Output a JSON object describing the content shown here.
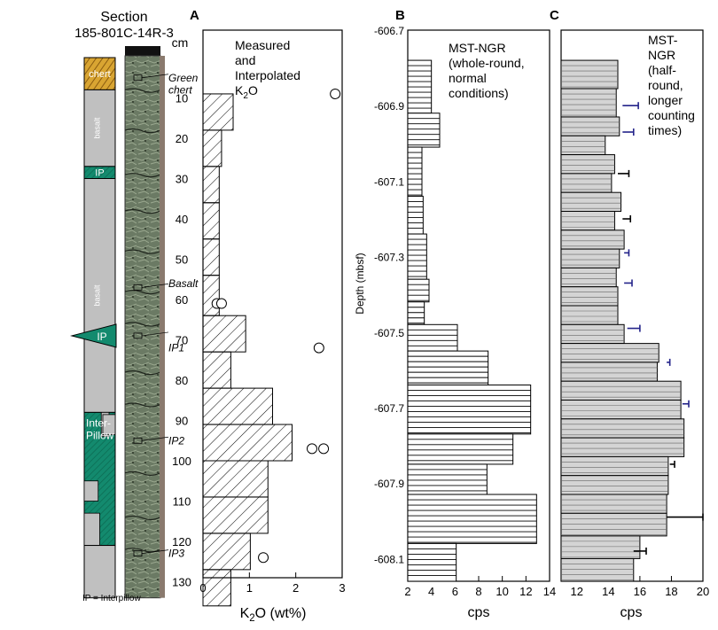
{
  "colors": {
    "chert": "#d9a532",
    "chert_hatch": "#8a5c10",
    "basalt": "#c0c0c0",
    "interpillow": "#138a6e",
    "core_photo": "#5e6e5a",
    "errorbar_blue": "#23238a",
    "bar_grey": "#d4d4d4"
  },
  "lith": {
    "section_title": "Section",
    "section_id": "185-801C-14R-3",
    "cm_label": "cm",
    "legend_note": "IP = Interpillow",
    "units": [
      {
        "kind": "chert",
        "label": "chert",
        "top_cm": 0,
        "bottom_cm": 8
      },
      {
        "kind": "basalt",
        "label": "basalt",
        "top_cm": 8,
        "bottom_cm": 27
      },
      {
        "kind": "ip",
        "label": "IP",
        "top_cm": 27,
        "bottom_cm": 30
      },
      {
        "kind": "basalt",
        "label": "basalt",
        "top_cm": 30,
        "bottom_cm": 88
      },
      {
        "kind": "ip",
        "label": "Inter-\nPillow",
        "top_cm": 88,
        "bottom_cm": 121
      },
      {
        "kind": "basalt",
        "label": "",
        "top_cm": 121,
        "bottom_cm": 134
      }
    ],
    "ip_marker_label": "IP",
    "ip_marker_cm": 69,
    "depth_ticks": [
      10,
      20,
      30,
      40,
      50,
      60,
      70,
      80,
      90,
      100,
      110,
      120,
      130
    ],
    "annotations": [
      {
        "text": "Green",
        "cm": 5
      },
      {
        "text": "chert",
        "cm": 8
      },
      {
        "text": "Basalt",
        "cm": 56
      },
      {
        "text": "IP1",
        "cm": 72
      },
      {
        "text": "IP2",
        "cm": 95
      },
      {
        "text": "IP3",
        "cm": 123
      }
    ]
  },
  "chart_data": [
    {
      "panel": "A",
      "type": "bar",
      "orientation": "horizontal",
      "title": "Measured\nand\nInterpolated\nK2O",
      "xlabel": "K2O (wt%)",
      "xlim": [
        0,
        3
      ],
      "xticks": [
        0,
        1,
        2,
        3
      ],
      "ylim_cm": [
        0,
        137
      ],
      "bars": [
        {
          "top": 9,
          "bottom": 18,
          "value": 0.65
        },
        {
          "top": 18,
          "bottom": 27,
          "value": 0.4
        },
        {
          "top": 27,
          "bottom": 36,
          "value": 0.35
        },
        {
          "top": 36,
          "bottom": 45,
          "value": 0.35
        },
        {
          "top": 45,
          "bottom": 54,
          "value": 0.35
        },
        {
          "top": 54,
          "bottom": 64,
          "value": 0.35
        },
        {
          "top": 64,
          "bottom": 73,
          "value": 0.92
        },
        {
          "top": 73,
          "bottom": 82,
          "value": 0.6
        },
        {
          "top": 82,
          "bottom": 91,
          "value": 1.5
        },
        {
          "top": 91,
          "bottom": 100,
          "value": 1.92
        },
        {
          "top": 100,
          "bottom": 109,
          "value": 1.4
        },
        {
          "top": 109,
          "bottom": 118,
          "value": 1.4
        },
        {
          "top": 118,
          "bottom": 127,
          "value": 1.02
        },
        {
          "top": 127,
          "bottom": 136,
          "value": 0.6
        }
      ],
      "points": [
        {
          "cm": 9,
          "value": 2.85
        },
        {
          "cm": 61,
          "value": 0.3
        },
        {
          "cm": 61,
          "value": 0.4
        },
        {
          "cm": 72,
          "value": 2.5
        },
        {
          "cm": 97,
          "value": 2.35
        },
        {
          "cm": 97,
          "value": 2.6
        },
        {
          "cm": 124,
          "value": 1.3
        }
      ]
    },
    {
      "panel": "B",
      "type": "bar",
      "orientation": "horizontal",
      "title": "MST-NGR\n(whole-round,\nnormal\nconditions)",
      "xlabel": "cps",
      "ylabel": "Depth (mbsf)",
      "xlim": [
        2,
        14
      ],
      "xticks": [
        2,
        4,
        6,
        8,
        10,
        12,
        14
      ],
      "ylim": [
        -606.7,
        -608.16
      ],
      "yticks": [
        -606.7,
        -606.9,
        -607.1,
        -607.3,
        -607.5,
        -607.7,
        -607.9,
        -608.1
      ],
      "bars": [
        {
          "top": -606.78,
          "bottom": -606.92,
          "value": 4.0
        },
        {
          "top": -606.92,
          "bottom": -607.01,
          "value": 4.7
        },
        {
          "top": -607.01,
          "bottom": -607.14,
          "value": 3.2
        },
        {
          "top": -607.14,
          "bottom": -607.24,
          "value": 3.3
        },
        {
          "top": -607.24,
          "bottom": -607.36,
          "value": 3.6
        },
        {
          "top": -607.36,
          "bottom": -607.42,
          "value": 3.8
        },
        {
          "top": -607.42,
          "bottom": -607.48,
          "value": 3.4
        },
        {
          "top": -607.48,
          "bottom": -607.55,
          "value": 6.2
        },
        {
          "top": -607.55,
          "bottom": -607.64,
          "value": 8.8
        },
        {
          "top": -607.64,
          "bottom": -607.77,
          "value": 12.4
        },
        {
          "top": -607.77,
          "bottom": -607.85,
          "value": 10.9
        },
        {
          "top": -607.85,
          "bottom": -607.93,
          "value": 8.7
        },
        {
          "top": -607.93,
          "bottom": -608.06,
          "value": 12.9
        },
        {
          "top": -608.06,
          "bottom": -608.16,
          "value": 6.1
        }
      ]
    },
    {
      "panel": "C",
      "type": "bar",
      "orientation": "horizontal",
      "title": "MST-\nNGR\n(half-\nround,\nlonger\ncounting\ntimes)",
      "xlabel": "cps",
      "xlim": [
        11,
        20
      ],
      "xticks": [
        12,
        14,
        16,
        18,
        20
      ],
      "ylim": [
        -606.7,
        -608.16
      ],
      "bars": [
        {
          "top": -606.78,
          "bottom": -606.855,
          "value": 14.6
        },
        {
          "top": -606.855,
          "bottom": -606.93,
          "value": 14.5
        },
        {
          "top": -606.93,
          "bottom": -606.98,
          "value": 14.7
        },
        {
          "top": -606.98,
          "bottom": -607.03,
          "value": 13.8
        },
        {
          "top": -607.03,
          "bottom": -607.08,
          "value": 14.4
        },
        {
          "top": -607.08,
          "bottom": -607.13,
          "value": 14.2
        },
        {
          "top": -607.13,
          "bottom": -607.18,
          "value": 14.8
        },
        {
          "top": -607.18,
          "bottom": -607.23,
          "value": 14.4
        },
        {
          "top": -607.23,
          "bottom": -607.28,
          "value": 15.0
        },
        {
          "top": -607.28,
          "bottom": -607.33,
          "value": 14.7
        },
        {
          "top": -607.33,
          "bottom": -607.38,
          "value": 14.5
        },
        {
          "top": -607.38,
          "bottom": -607.43,
          "value": 14.6
        },
        {
          "top": -607.43,
          "bottom": -607.48,
          "value": 14.6
        },
        {
          "top": -607.48,
          "bottom": -607.53,
          "value": 15.0
        },
        {
          "top": -607.53,
          "bottom": -607.58,
          "value": 17.2
        },
        {
          "top": -607.58,
          "bottom": -607.63,
          "value": 17.1
        },
        {
          "top": -607.63,
          "bottom": -607.68,
          "value": 18.6
        },
        {
          "top": -607.68,
          "bottom": -607.73,
          "value": 18.6
        },
        {
          "top": -607.73,
          "bottom": -607.78,
          "value": 18.8
        },
        {
          "top": -607.78,
          "bottom": -607.83,
          "value": 18.8
        },
        {
          "top": -607.83,
          "bottom": -607.88,
          "value": 17.8
        },
        {
          "top": -607.88,
          "bottom": -607.93,
          "value": 17.8
        },
        {
          "top": -607.93,
          "bottom": -607.98,
          "value": 17.7
        },
        {
          "top": -607.98,
          "bottom": -608.04,
          "value": 17.7
        },
        {
          "top": -608.04,
          "bottom": -608.1,
          "value": 16.0
        },
        {
          "top": -608.1,
          "bottom": -608.16,
          "value": 15.6
        }
      ],
      "points": [
        {
          "depth": -606.9,
          "value": 14.9,
          "err_lo": 0.0,
          "err_hi": 1.0,
          "color": "blue"
        },
        {
          "depth": -606.97,
          "value": 14.9,
          "err_lo": 0.0,
          "err_hi": 0.7,
          "color": "blue"
        },
        {
          "depth": -607.08,
          "value": 14.6,
          "err_lo": 0.0,
          "err_hi": 0.7,
          "color": "black"
        },
        {
          "depth": -607.2,
          "value": 14.9,
          "err_lo": 0.0,
          "err_hi": 0.5,
          "color": "black"
        },
        {
          "depth": -607.29,
          "value": 15.0,
          "err_lo": 0.0,
          "err_hi": 0.3,
          "color": "blue"
        },
        {
          "depth": -607.37,
          "value": 15.0,
          "err_lo": 0.0,
          "err_hi": 0.5,
          "color": "blue"
        },
        {
          "depth": -607.49,
          "value": 15.2,
          "err_lo": 0.0,
          "err_hi": 0.8,
          "color": "blue"
        },
        {
          "depth": -607.58,
          "value": 17.7,
          "err_lo": 0.0,
          "err_hi": 0.2,
          "color": "blue"
        },
        {
          "depth": -607.69,
          "value": 18.7,
          "err_lo": 0.0,
          "err_hi": 0.4,
          "color": "blue"
        },
        {
          "depth": -607.85,
          "value": 17.9,
          "err_lo": 0.0,
          "err_hi": 0.3,
          "color": "black"
        },
        {
          "depth": -607.99,
          "value": 17.7,
          "err_lo": 0.0,
          "err_hi": 2.3,
          "color": "black"
        },
        {
          "depth": -608.08,
          "value": 15.6,
          "err_lo": 0.0,
          "err_hi": 0.8,
          "color": "black"
        }
      ]
    }
  ],
  "panels": {
    "a_label": "A",
    "b_label": "B",
    "c_label": "C"
  }
}
